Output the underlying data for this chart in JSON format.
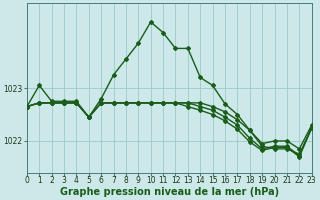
{
  "title": "Graphe pression niveau de la mer (hPa)",
  "bg_color": "#cce8e8",
  "grid_color": "#9fc8c8",
  "line_color": "#1a5c1a",
  "line_width": 1.0,
  "marker": "D",
  "marker_size": 2.0,
  "xlim": [
    0,
    23
  ],
  "ylim": [
    1021.4,
    1024.6
  ],
  "yticks": [
    1022,
    1023
  ],
  "xticks": [
    0,
    1,
    2,
    3,
    4,
    5,
    6,
    7,
    8,
    9,
    10,
    11,
    12,
    13,
    14,
    15,
    16,
    17,
    18,
    19,
    20,
    21,
    22,
    23
  ],
  "series": [
    [
      1022.65,
      1023.05,
      1022.75,
      1022.75,
      1022.75,
      1022.45,
      1022.8,
      1023.25,
      1023.55,
      1023.85,
      1024.25,
      1024.05,
      1023.75,
      1023.75,
      1023.2,
      1023.05,
      1022.7,
      1022.5,
      1022.2,
      1021.95,
      1022.0,
      1022.0,
      1021.85,
      1022.3
    ],
    [
      1022.65,
      1022.72,
      1022.72,
      1022.72,
      1022.72,
      1022.45,
      1022.72,
      1022.72,
      1022.72,
      1022.72,
      1022.72,
      1022.72,
      1022.72,
      1022.72,
      1022.72,
      1022.65,
      1022.55,
      1022.4,
      1022.2,
      1021.9,
      1021.85,
      1021.85,
      1021.75,
      1022.25
    ],
    [
      1022.65,
      1022.72,
      1022.72,
      1022.72,
      1022.72,
      1022.45,
      1022.72,
      1022.72,
      1022.72,
      1022.72,
      1022.72,
      1022.72,
      1022.72,
      1022.72,
      1022.65,
      1022.58,
      1022.45,
      1022.3,
      1022.05,
      1021.85,
      1021.9,
      1021.9,
      1021.72,
      1022.25
    ],
    [
      1022.65,
      1022.72,
      1022.72,
      1022.72,
      1022.72,
      1022.45,
      1022.72,
      1022.72,
      1022.72,
      1022.72,
      1022.72,
      1022.72,
      1022.72,
      1022.65,
      1022.58,
      1022.5,
      1022.38,
      1022.22,
      1021.98,
      1021.82,
      1021.88,
      1021.88,
      1021.7,
      1022.25
    ]
  ],
  "title_fontsize": 7.0,
  "tick_fontsize": 5.5,
  "title_color": "#1a5c1a"
}
